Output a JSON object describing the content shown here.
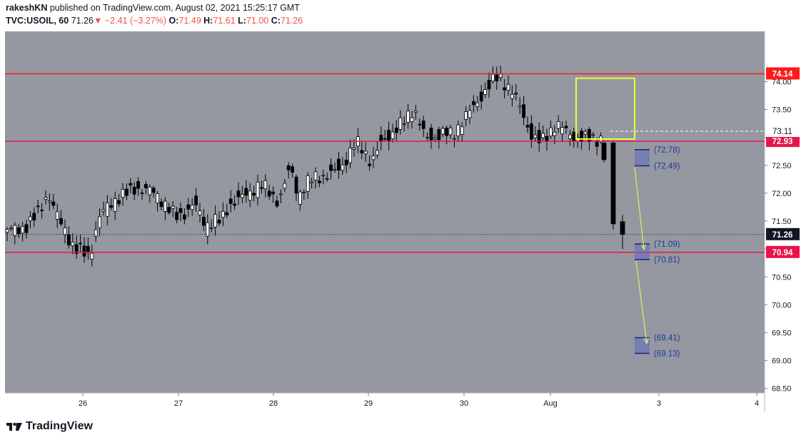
{
  "header": {
    "author": "rakeshKN",
    "published_text": "published on TradingView.com, August 02, 2021 15:25:17 GMT",
    "symbol": "TVC:USOIL, 60",
    "last": "71.26",
    "change": "−2.41 (−3.27%)",
    "open_label": "O:",
    "open": "71.49",
    "high_label": "H:",
    "high": "71.61",
    "low_label": "L:",
    "low": "71.00",
    "close_label": "C:",
    "close": "71.26"
  },
  "footer": {
    "brand": "TradingView"
  },
  "colors": {
    "plot_bg": "#9598a1",
    "level_line": "#e8144a",
    "top_line": "#ff1a1a",
    "box_yellow": "#eaff33",
    "arrow": "#d8e86b",
    "target_fill": "#5c6bc0",
    "target_text": "#1a3a9c"
  },
  "chart_data": {
    "type": "candlestick",
    "symbol": "TVC:USOIL",
    "interval": "60",
    "y_ticks": [
      "74.00",
      "73.50",
      "73.00",
      "72.50",
      "72.00",
      "71.50",
      "71.00",
      "70.50",
      "70.00",
      "69.50",
      "69.00",
      "68.50"
    ],
    "x_ticks": [
      "26",
      "27",
      "28",
      "29",
      "30",
      "Aug",
      "3",
      "4"
    ],
    "ylim": [
      68.42,
      74.9
    ],
    "horizontal_levels": [
      {
        "value": 74.14,
        "label": "74.14"
      },
      {
        "value": 72.93,
        "label": "72.93"
      },
      {
        "value": 70.94,
        "label": "70.94"
      }
    ],
    "last_price": {
      "value": 71.26,
      "label": "71.26"
    },
    "dashed_level": {
      "value": 73.11,
      "label": "73.11"
    },
    "target_zones": [
      {
        "top": 72.78,
        "bottom": 72.49,
        "top_label": "(72.78)",
        "bottom_label": "(72.49)"
      },
      {
        "top": 71.09,
        "bottom": 70.81,
        "top_label": "(71.09)",
        "bottom_label": "(70.81)"
      },
      {
        "top": 69.41,
        "bottom": 69.13,
        "top_label": "(69.41)",
        "bottom_label": "(69.13)"
      }
    ],
    "candles_sample": [
      {
        "t": "Jul 26 00:00",
        "o": 71.35,
        "h": 71.5,
        "l": 71.2,
        "c": 71.28
      },
      {
        "t": "Jul 26 08:00",
        "o": 71.7,
        "h": 71.95,
        "l": 71.55,
        "c": 71.85
      },
      {
        "t": "Jul 26 16:00",
        "o": 72.3,
        "h": 72.4,
        "l": 71.7,
        "c": 72.15
      },
      {
        "t": "Jul 27 00:00",
        "o": 71.3,
        "h": 71.5,
        "l": 70.55,
        "c": 71.0
      },
      {
        "t": "Jul 27 08:00",
        "o": 71.9,
        "h": 72.0,
        "l": 71.4,
        "c": 71.75
      },
      {
        "t": "Jul 27 16:00",
        "o": 72.2,
        "h": 72.3,
        "l": 71.8,
        "c": 72.1
      },
      {
        "t": "Jul 28 00:00",
        "o": 71.6,
        "h": 71.8,
        "l": 71.0,
        "c": 71.3
      },
      {
        "t": "Jul 28 08:00",
        "o": 71.6,
        "h": 72.1,
        "l": 71.5,
        "c": 71.95
      },
      {
        "t": "Jul 28 16:00",
        "o": 72.2,
        "h": 72.6,
        "l": 71.8,
        "c": 72.05
      },
      {
        "t": "Jul 29 00:00",
        "o": 72.35,
        "h": 72.5,
        "l": 72.2,
        "c": 72.4
      },
      {
        "t": "Jul 29 08:00",
        "o": 72.9,
        "h": 73.05,
        "l": 72.7,
        "c": 72.95
      },
      {
        "t": "Jul 29 16:00",
        "o": 72.55,
        "h": 72.8,
        "l": 72.4,
        "c": 72.6
      },
      {
        "t": "Jul 30 00:00",
        "o": 73.4,
        "h": 73.6,
        "l": 73.2,
        "c": 73.55
      },
      {
        "t": "Jul 30 08:00",
        "o": 73.2,
        "h": 73.3,
        "l": 73.0,
        "c": 73.1
      },
      {
        "t": "Jul 30 16:00",
        "o": 73.5,
        "h": 73.7,
        "l": 73.2,
        "c": 73.6
      },
      {
        "t": "Jul 30 23:00",
        "o": 74.05,
        "h": 74.18,
        "l": 73.9,
        "c": 74.1
      },
      {
        "t": "Aug 02 00:00",
        "o": 72.95,
        "h": 73.2,
        "l": 72.8,
        "c": 73.1
      },
      {
        "t": "Aug 02 08:00",
        "o": 73.2,
        "h": 73.3,
        "l": 72.95,
        "c": 73.0
      },
      {
        "t": "Aug 02 12:00",
        "o": 72.9,
        "h": 72.95,
        "l": 72.55,
        "c": 72.6
      },
      {
        "t": "Aug 02 13:00",
        "o": 72.9,
        "h": 72.95,
        "l": 71.35,
        "c": 71.45
      },
      {
        "t": "Aug 02 14:00",
        "o": 71.49,
        "h": 71.61,
        "l": 71.0,
        "c": 71.26
      }
    ]
  }
}
